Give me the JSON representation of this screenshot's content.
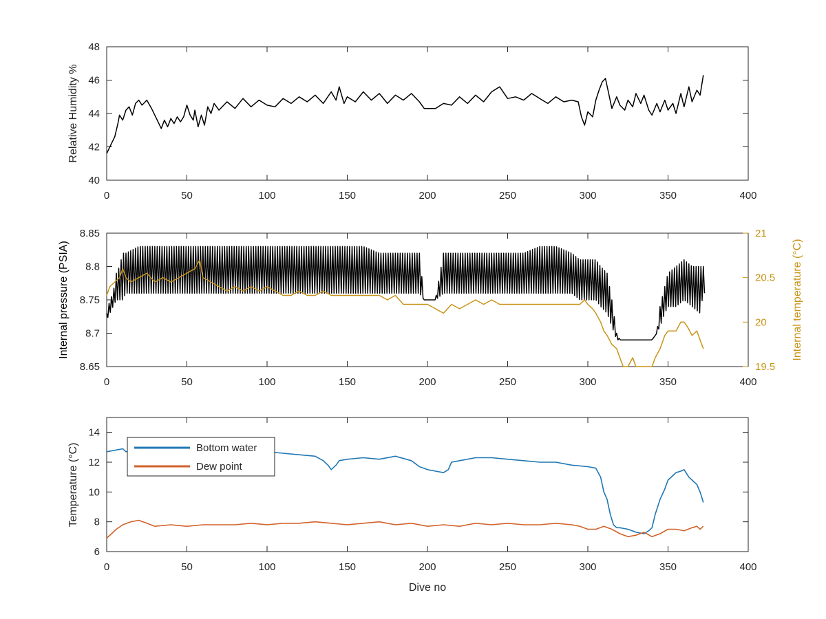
{
  "colors": {
    "axis": "#262626",
    "black_series": "#000000",
    "internal_temperature": "#C89418",
    "bottom_water": "#1F77B4",
    "dew_point": "#D2622A"
  },
  "chart_data": [
    {
      "type": "line",
      "xlabel": "",
      "ylabel": "Relative Humidity %",
      "xlim": [
        0,
        400
      ],
      "ylim": [
        40,
        48
      ],
      "xticks": [
        0,
        50,
        100,
        150,
        200,
        250,
        300,
        350,
        400
      ],
      "yticks": [
        40,
        42,
        44,
        46,
        48
      ],
      "x_tick_labels": [
        "0",
        "50",
        "100",
        "150",
        "200",
        "250",
        "300",
        "350",
        "400"
      ],
      "y_tick_labels": [
        "40",
        "42",
        "44",
        "46",
        "48"
      ],
      "grid": false,
      "series": [
        {
          "color": "#000000",
          "x": [
            0,
            1,
            3,
            5,
            7,
            8,
            10,
            12,
            14,
            16,
            18,
            20,
            22,
            25,
            28,
            30,
            32,
            34,
            36,
            38,
            40,
            42,
            44,
            46,
            48,
            50,
            52,
            54,
            55,
            57,
            59,
            61,
            63,
            65,
            67,
            70,
            75,
            80,
            85,
            90,
            95,
            100,
            105,
            110,
            115,
            120,
            125,
            130,
            135,
            140,
            143,
            145,
            148,
            150,
            155,
            160,
            165,
            170,
            175,
            180,
            185,
            190,
            195,
            198,
            200,
            205,
            210,
            215,
            220,
            225,
            230,
            235,
            240,
            245,
            250,
            255,
            260,
            265,
            270,
            275,
            280,
            285,
            290,
            294,
            296,
            298,
            300,
            303,
            305,
            307,
            309,
            311,
            313,
            315,
            318,
            320,
            323,
            325,
            328,
            330,
            333,
            335,
            338,
            340,
            343,
            345,
            348,
            350,
            353,
            355,
            358,
            360,
            363,
            365,
            368,
            370,
            372
          ],
          "y": [
            41.6,
            41.8,
            42.2,
            42.6,
            43.4,
            43.9,
            43.6,
            44.2,
            44.4,
            43.9,
            44.6,
            44.8,
            44.5,
            44.8,
            44.3,
            43.9,
            43.5,
            43.1,
            43.6,
            43.2,
            43.7,
            43.4,
            43.8,
            43.5,
            43.8,
            44.5,
            43.9,
            43.6,
            44.2,
            43.2,
            43.9,
            43.3,
            44.4,
            44.0,
            44.6,
            44.2,
            44.7,
            44.3,
            44.9,
            44.4,
            44.8,
            44.5,
            44.4,
            44.9,
            44.6,
            45.0,
            44.7,
            45.1,
            44.6,
            45.3,
            44.8,
            45.6,
            44.6,
            45.0,
            44.7,
            45.3,
            44.8,
            45.2,
            44.6,
            45.1,
            44.8,
            45.2,
            44.7,
            44.3,
            44.3,
            44.3,
            44.6,
            44.5,
            45.0,
            44.6,
            45.1,
            44.7,
            45.3,
            45.6,
            44.9,
            45.0,
            44.8,
            45.2,
            44.9,
            44.6,
            45.0,
            44.7,
            44.8,
            44.7,
            43.8,
            43.3,
            44.1,
            43.8,
            44.8,
            45.4,
            45.9,
            46.1,
            45.2,
            44.3,
            45.0,
            44.5,
            44.2,
            44.8,
            44.4,
            45.2,
            44.6,
            45.1,
            44.2,
            43.9,
            44.6,
            44.1,
            44.8,
            44.2,
            44.6,
            44.0,
            45.2,
            44.4,
            45.6,
            44.7,
            45.4,
            45.1,
            46.3
          ]
        }
      ]
    },
    {
      "type": "line",
      "xlabel": "",
      "ylabel": "Internal pressure (PSIA)",
      "ylabel_right": "Internal temperature (°C)",
      "xlim": [
        0,
        400
      ],
      "ylim": [
        8.65,
        8.85
      ],
      "ylim_right": [
        19.5,
        21
      ],
      "xticks": [
        0,
        50,
        100,
        150,
        200,
        250,
        300,
        350,
        400
      ],
      "yticks": [
        8.65,
        8.7,
        8.75,
        8.8,
        8.85
      ],
      "yticks_right": [
        19.5,
        20,
        20.5,
        21
      ],
      "x_tick_labels": [
        "0",
        "50",
        "100",
        "150",
        "200",
        "250",
        "300",
        "350",
        "400"
      ],
      "y_tick_labels": [
        "8.65",
        "8.7",
        "8.75",
        "8.8",
        "8.85"
      ],
      "y_tick_labels_right": [
        "19.5",
        "20",
        "20.5",
        "21"
      ],
      "grid": false,
      "series": [
        {
          "axis": "left",
          "color": "#000000",
          "x": [
            0,
            2,
            4,
            6,
            8,
            10,
            12,
            20,
            30,
            40,
            60,
            80,
            100,
            120,
            140,
            160,
            170,
            180,
            190,
            195,
            198,
            205,
            210,
            220,
            240,
            260,
            270,
            280,
            290,
            295,
            300,
            305,
            308,
            312,
            315,
            318,
            320,
            325,
            330,
            335,
            340,
            343,
            345,
            348,
            350,
            355,
            360,
            365,
            370,
            372
          ],
          "y": [
            8.72,
            8.74,
            8.76,
            8.78,
            8.79,
            8.8,
            8.81,
            8.81,
            8.82,
            8.82,
            8.82,
            8.82,
            8.81,
            8.81,
            8.81,
            8.81,
            8.81,
            8.81,
            8.81,
            8.81,
            8.75,
            8.75,
            8.8,
            8.81,
            8.81,
            8.81,
            8.82,
            8.81,
            8.81,
            8.79,
            8.78,
            8.77,
            8.76,
            8.74,
            8.72,
            8.69,
            8.69,
            8.69,
            8.69,
            8.69,
            8.69,
            8.7,
            8.72,
            8.74,
            8.76,
            8.77,
            8.77,
            8.77,
            8.77,
            8.78
          ],
          "oscillation_low": [
            8.72,
            8.73,
            8.74,
            8.75,
            8.75,
            8.75,
            8.76,
            8.76,
            8.76,
            8.76,
            8.76,
            8.76,
            8.76,
            8.76,
            8.76,
            8.76,
            8.76,
            8.76,
            8.76,
            8.76,
            8.75,
            8.75,
            8.76,
            8.76,
            8.76,
            8.76,
            8.76,
            8.76,
            8.76,
            8.75,
            8.75,
            8.75,
            8.74,
            8.73,
            8.71,
            8.69,
            8.69,
            8.69,
            8.69,
            8.69,
            8.69,
            8.7,
            8.71,
            8.73,
            8.74,
            8.74,
            8.75,
            8.74,
            8.73,
            8.76
          ],
          "oscillation_high": [
            8.73,
            8.75,
            8.76,
            8.79,
            8.8,
            8.82,
            8.82,
            8.83,
            8.83,
            8.83,
            8.83,
            8.83,
            8.83,
            8.83,
            8.83,
            8.83,
            8.82,
            8.82,
            8.82,
            8.82,
            8.75,
            8.75,
            8.82,
            8.82,
            8.82,
            8.82,
            8.83,
            8.83,
            8.82,
            8.81,
            8.81,
            8.81,
            8.8,
            8.79,
            8.75,
            8.7,
            8.69,
            8.69,
            8.69,
            8.69,
            8.69,
            8.7,
            8.74,
            8.77,
            8.79,
            8.8,
            8.81,
            8.8,
            8.8,
            8.8
          ]
        },
        {
          "axis": "right",
          "color": "#C89418",
          "x": [
            0,
            2,
            5,
            8,
            10,
            12,
            15,
            20,
            25,
            30,
            35,
            40,
            45,
            50,
            55,
            58,
            60,
            65,
            70,
            75,
            80,
            85,
            90,
            95,
            100,
            105,
            110,
            115,
            120,
            125,
            130,
            135,
            140,
            145,
            150,
            155,
            160,
            165,
            170,
            175,
            180,
            185,
            190,
            195,
            200,
            205,
            210,
            215,
            220,
            225,
            230,
            235,
            240,
            245,
            250,
            260,
            270,
            280,
            285,
            290,
            295,
            298,
            300,
            303,
            305,
            308,
            310,
            312,
            315,
            318,
            320,
            322,
            325,
            328,
            330,
            335,
            340,
            342,
            345,
            348,
            350,
            352,
            355,
            358,
            360,
            362,
            365,
            368,
            370,
            372
          ],
          "y": [
            20.3,
            20.4,
            20.45,
            20.5,
            20.6,
            20.5,
            20.45,
            20.5,
            20.55,
            20.45,
            20.5,
            20.45,
            20.5,
            20.55,
            20.6,
            20.7,
            20.5,
            20.45,
            20.4,
            20.35,
            20.4,
            20.35,
            20.4,
            20.35,
            20.4,
            20.35,
            20.3,
            20.3,
            20.35,
            20.3,
            20.3,
            20.35,
            20.3,
            20.3,
            20.3,
            20.3,
            20.3,
            20.3,
            20.3,
            20.25,
            20.3,
            20.2,
            20.2,
            20.2,
            20.2,
            20.15,
            20.1,
            20.2,
            20.15,
            20.2,
            20.25,
            20.2,
            20.25,
            20.2,
            20.2,
            20.2,
            20.2,
            20.2,
            20.2,
            20.2,
            20.2,
            20.25,
            20.2,
            20.15,
            20.1,
            20.0,
            19.9,
            19.85,
            19.75,
            19.7,
            19.6,
            19.5,
            19.5,
            19.6,
            19.5,
            19.5,
            19.5,
            19.6,
            19.7,
            19.85,
            19.9,
            19.9,
            19.9,
            20.0,
            20.0,
            19.95,
            19.85,
            19.9,
            19.8,
            19.7
          ]
        }
      ]
    },
    {
      "type": "line",
      "xlabel": "Dive no",
      "ylabel": "Temperature (°C)",
      "xlim": [
        0,
        400
      ],
      "ylim": [
        6,
        15
      ],
      "xticks": [
        0,
        50,
        100,
        150,
        200,
        250,
        300,
        350,
        400
      ],
      "yticks": [
        6,
        8,
        10,
        12,
        14
      ],
      "x_tick_labels": [
        "0",
        "50",
        "100",
        "150",
        "200",
        "250",
        "300",
        "350",
        "400"
      ],
      "y_tick_labels": [
        "6",
        "8",
        "10",
        "12",
        "14"
      ],
      "legend": "top-left",
      "grid": false,
      "series": [
        {
          "name": "Bottom water",
          "color": "#1F77B4",
          "x": [
            0,
            5,
            10,
            12,
            15,
            20,
            30,
            40,
            50,
            60,
            70,
            80,
            90,
            100,
            110,
            120,
            130,
            135,
            138,
            140,
            143,
            145,
            150,
            160,
            170,
            180,
            190,
            195,
            200,
            205,
            210,
            213,
            215,
            220,
            230,
            240,
            250,
            260,
            270,
            280,
            290,
            300,
            305,
            308,
            310,
            312,
            314,
            316,
            318,
            320,
            325,
            330,
            335,
            338,
            340,
            342,
            345,
            348,
            350,
            353,
            355,
            358,
            360,
            363,
            365,
            368,
            370,
            372
          ],
          "y": [
            12.7,
            12.8,
            12.9,
            12.7,
            12.8,
            12.8,
            12.8,
            12.8,
            12.8,
            12.8,
            12.8,
            12.8,
            12.8,
            12.7,
            12.6,
            12.5,
            12.4,
            12.1,
            11.8,
            11.5,
            11.8,
            12.1,
            12.2,
            12.3,
            12.2,
            12.4,
            12.1,
            11.7,
            11.5,
            11.4,
            11.3,
            11.5,
            12.0,
            12.1,
            12.3,
            12.3,
            12.2,
            12.1,
            12.0,
            12.0,
            11.8,
            11.7,
            11.6,
            11.0,
            10.0,
            9.5,
            8.5,
            7.8,
            7.6,
            7.6,
            7.5,
            7.3,
            7.2,
            7.4,
            7.6,
            8.5,
            9.5,
            10.2,
            10.8,
            11.1,
            11.3,
            11.4,
            11.5,
            11.0,
            10.8,
            10.5,
            10.0,
            9.3
          ]
        },
        {
          "name": "Dew point",
          "color": "#D2622A",
          "x": [
            0,
            3,
            6,
            10,
            15,
            20,
            25,
            30,
            40,
            50,
            60,
            70,
            80,
            90,
            100,
            110,
            120,
            130,
            140,
            150,
            160,
            170,
            180,
            190,
            200,
            210,
            220,
            230,
            240,
            250,
            260,
            270,
            280,
            290,
            295,
            300,
            305,
            310,
            315,
            320,
            325,
            330,
            335,
            340,
            345,
            350,
            355,
            360,
            365,
            368,
            370,
            372
          ],
          "y": [
            6.9,
            7.2,
            7.5,
            7.8,
            8.0,
            8.1,
            7.9,
            7.7,
            7.8,
            7.7,
            7.8,
            7.8,
            7.8,
            7.9,
            7.8,
            7.9,
            7.9,
            8.0,
            7.9,
            7.8,
            7.9,
            8.0,
            7.8,
            7.9,
            7.7,
            7.8,
            7.7,
            7.9,
            7.8,
            7.9,
            7.8,
            7.8,
            7.9,
            7.8,
            7.7,
            7.5,
            7.5,
            7.7,
            7.5,
            7.2,
            7.0,
            7.1,
            7.3,
            7.0,
            7.2,
            7.5,
            7.5,
            7.4,
            7.6,
            7.7,
            7.5,
            7.7
          ]
        }
      ]
    }
  ]
}
